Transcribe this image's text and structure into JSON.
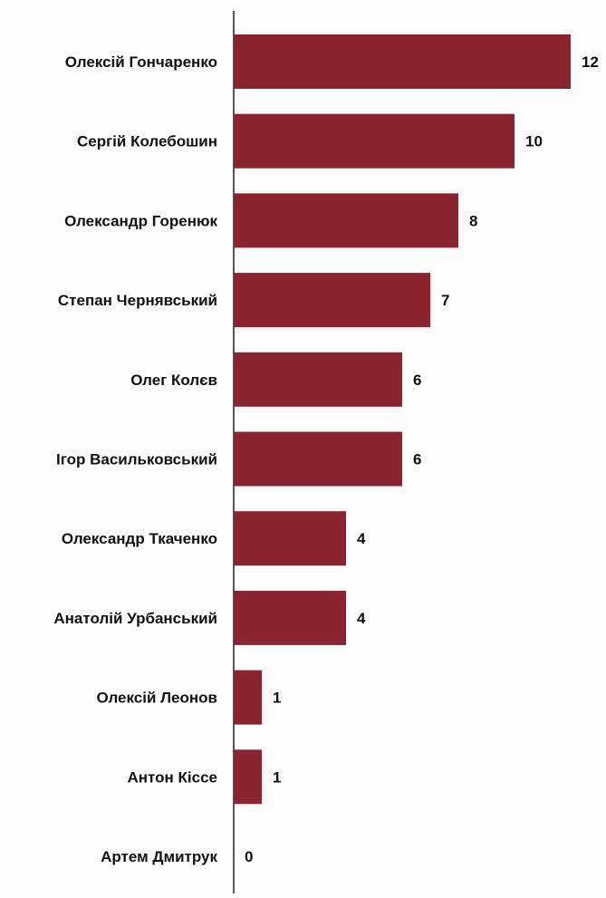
{
  "chart_data": {
    "type": "bar",
    "orientation": "horizontal",
    "categories": [
      "Олексій Гончаренко",
      "Сергій Колебошин",
      "Олександр Горенюк",
      "Степан Чернявський",
      "Олег Колєв",
      "Ігор Васильковський",
      "Олександр Ткаченко",
      "Анатолій Урбанський",
      "Олексій Леонов",
      "Антон Кіссе",
      "Артем Дмитрук"
    ],
    "values": [
      12,
      10,
      8,
      7,
      6,
      6,
      4,
      4,
      1,
      1,
      0
    ],
    "value_labels": [
      "12",
      "10",
      "8",
      "7",
      "6",
      "6",
      "4",
      "4",
      "1",
      "1",
      "0"
    ],
    "title": "",
    "xlabel": "",
    "ylabel": "",
    "xlim": [
      0,
      12
    ],
    "grid": false,
    "legend": "none",
    "colors": {
      "bar": "#8a2530",
      "axis": "#222222",
      "text": "#111111",
      "background": "#fcfcfc"
    }
  }
}
